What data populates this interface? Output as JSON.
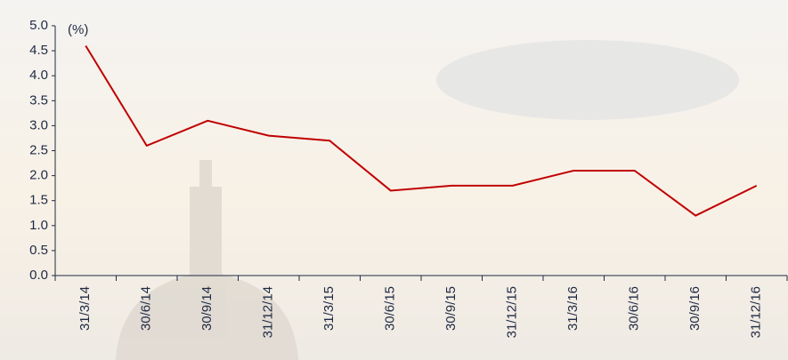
{
  "chart_data": {
    "type": "line",
    "y_unit_label": "(%)",
    "categories": [
      "31/3/14",
      "30/6/14",
      "30/9/14",
      "31/12/14",
      "31/3/15",
      "30/6/15",
      "30/9/15",
      "31/12/15",
      "31/3/16",
      "30/6/16",
      "30/9/16",
      "31/12/16"
    ],
    "series": [
      {
        "color": "#c00000",
        "values": [
          4.6,
          2.6,
          3.1,
          2.8,
          2.7,
          1.7,
          1.8,
          1.8,
          2.1,
          2.1,
          1.2,
          1.8
        ]
      }
    ],
    "ylim": [
      0,
      5
    ],
    "yticks": [
      {
        "value": 0,
        "label": "0.0"
      },
      0.5,
      {
        "value": 1,
        "label": "1.0"
      },
      1.5,
      {
        "value": 2,
        "label": "2.0"
      },
      2.5,
      {
        "value": 3,
        "label": "3.0"
      },
      3.5,
      {
        "value": 4,
        "label": "4.0"
      },
      4.5,
      {
        "value": 5,
        "label": "5.0"
      }
    ]
  }
}
